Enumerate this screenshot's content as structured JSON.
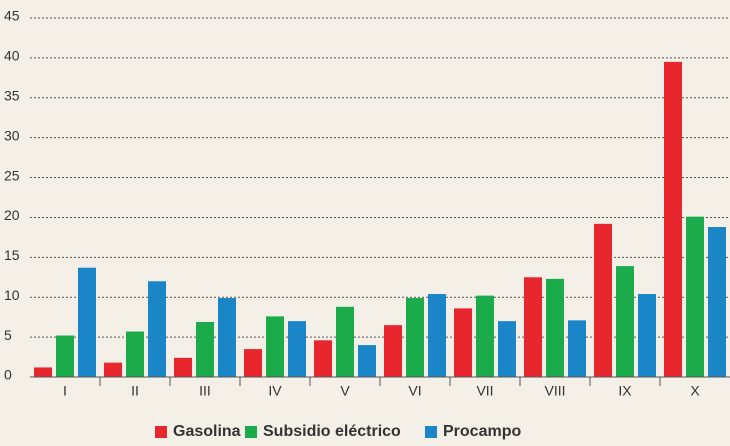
{
  "chart_data": {
    "type": "bar",
    "categories": [
      "I",
      "II",
      "III",
      "IV",
      "V",
      "VI",
      "VII",
      "VIII",
      "IX",
      "X"
    ],
    "series": [
      {
        "name": "Gasolina",
        "color": "#e8262e",
        "values": [
          1.2,
          1.8,
          2.4,
          3.5,
          4.6,
          6.5,
          8.6,
          12.5,
          19.2,
          39.5
        ]
      },
      {
        "name": "Subsidio eléctrico",
        "color": "#1bab4b",
        "values": [
          5.2,
          5.7,
          6.9,
          7.6,
          8.8,
          9.9,
          10.2,
          12.3,
          13.9,
          20.1
        ]
      },
      {
        "name": "Procampo",
        "color": "#1a86c8",
        "values": [
          13.7,
          12.0,
          9.9,
          7.0,
          4.0,
          10.4,
          7.0,
          7.1,
          10.4,
          18.8
        ]
      }
    ],
    "ylim": [
      0,
      45
    ],
    "yticks": [
      0,
      5,
      10,
      15,
      20,
      25,
      30,
      35,
      40,
      45
    ],
    "grid": true,
    "legend": "bottom"
  }
}
